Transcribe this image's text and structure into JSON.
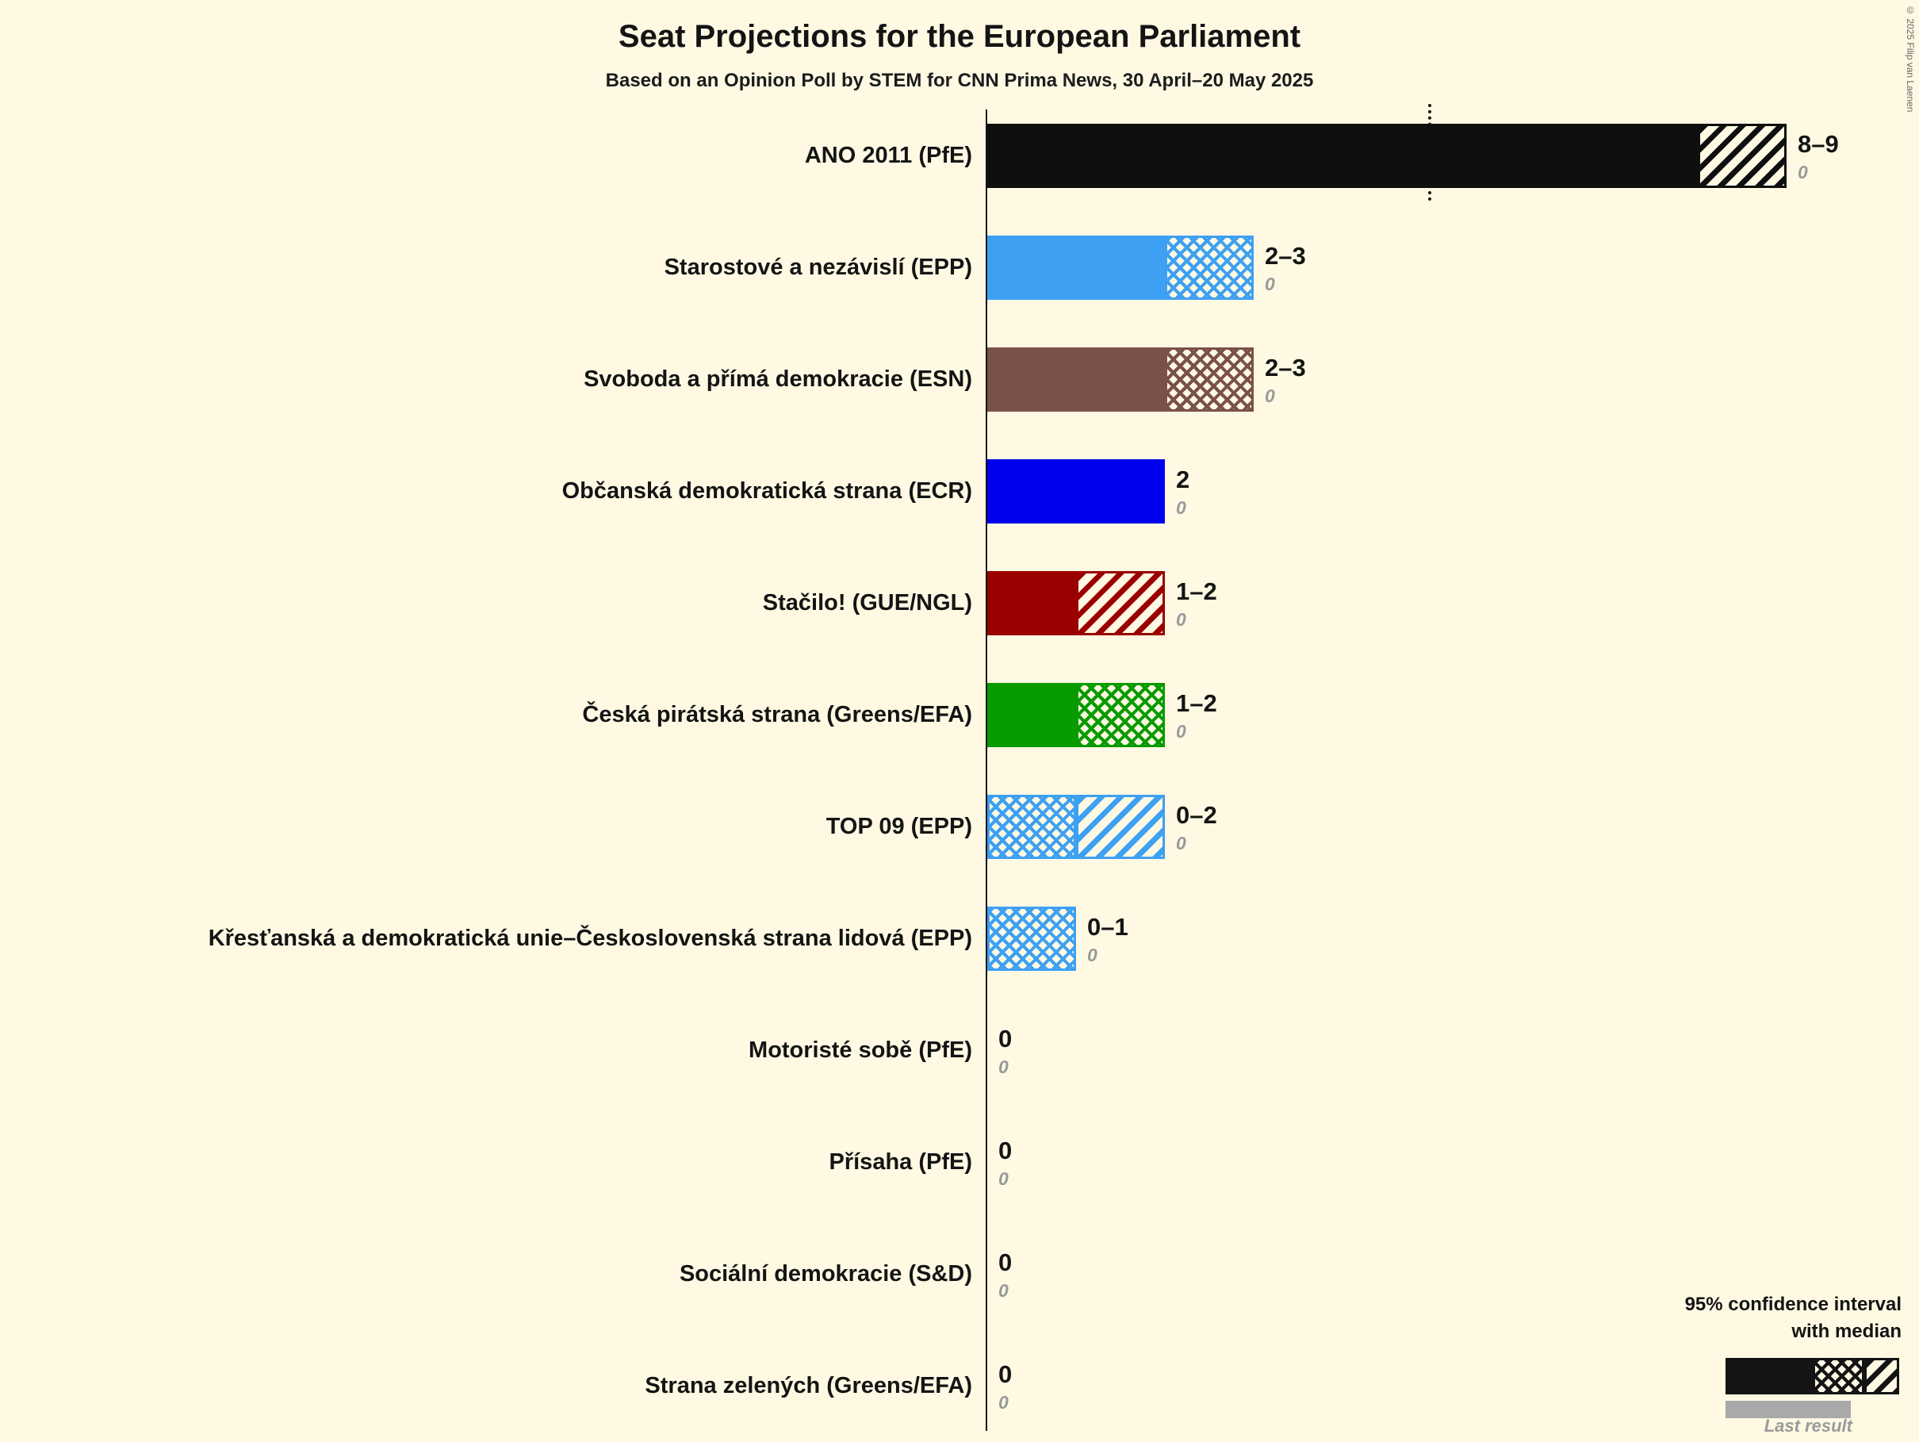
{
  "title": "Seat Projections for the European Parliament",
  "subtitle": "Based on an Opinion Poll by STEM for CNN Prima News, 30 April–20 May 2025",
  "copyright": "© 2025 Filip van Laenen",
  "legend": {
    "ci_line1": "95% confidence interval",
    "ci_line2": "with median",
    "last_result": "Last result"
  },
  "chart_data": {
    "type": "bar",
    "orientation": "horizontal",
    "unit": "seats",
    "x_min": 0,
    "x_max": 9,
    "dotted_marker_at": 5,
    "background_color": "#FFF9E3",
    "parties": [
      {
        "label": "ANO 2011 (PfE)",
        "value_label": "8–9",
        "last_result": "0",
        "color": "#0f0f0f",
        "segments": [
          {
            "style": "solid",
            "from": 0,
            "to": 8
          },
          {
            "style": "diagonal",
            "from": 8,
            "to": 9
          }
        ]
      },
      {
        "label": "Starostové a nezávislí (EPP)",
        "value_label": "2–3",
        "last_result": "0",
        "color": "#3ea0f2",
        "segments": [
          {
            "style": "solid",
            "from": 0,
            "to": 2
          },
          {
            "style": "cross",
            "from": 2,
            "to": 3
          }
        ]
      },
      {
        "label": "Svoboda a přímá demokracie (ESN)",
        "value_label": "2–3",
        "last_result": "0",
        "color": "#7a5148",
        "segments": [
          {
            "style": "solid",
            "from": 0,
            "to": 2
          },
          {
            "style": "cross",
            "from": 2,
            "to": 3
          }
        ]
      },
      {
        "label": "Občanská demokratická strana (ECR)",
        "value_label": "2",
        "last_result": "0",
        "color": "#0000ee",
        "segments": [
          {
            "style": "solid",
            "from": 0,
            "to": 2
          }
        ]
      },
      {
        "label": "Stačilo! (GUE/NGL)",
        "value_label": "1–2",
        "last_result": "0",
        "color": "#9a0000",
        "segments": [
          {
            "style": "solid",
            "from": 0,
            "to": 1
          },
          {
            "style": "diagonal",
            "from": 1,
            "to": 2
          }
        ]
      },
      {
        "label": "Česká pirátská strana (Greens/EFA)",
        "value_label": "1–2",
        "last_result": "0",
        "color": "#089b00",
        "segments": [
          {
            "style": "solid",
            "from": 0,
            "to": 1
          },
          {
            "style": "cross",
            "from": 1,
            "to": 2
          }
        ]
      },
      {
        "label": "TOP 09 (EPP)",
        "value_label": "0–2",
        "last_result": "0",
        "color": "#3ea0f2",
        "segments": [
          {
            "style": "cross",
            "from": 0,
            "to": 1
          },
          {
            "style": "diagonal",
            "from": 1,
            "to": 2
          }
        ]
      },
      {
        "label": "Křesťanská a demokratická unie–Československá strana lidová (EPP)",
        "value_label": "0–1",
        "last_result": "0",
        "color": "#3ea0f2",
        "segments": [
          {
            "style": "cross",
            "from": 0,
            "to": 1
          }
        ]
      },
      {
        "label": "Motoristé sobě (PfE)",
        "value_label": "0",
        "last_result": "0",
        "color": "#0f0f0f",
        "segments": []
      },
      {
        "label": "Přísaha (PfE)",
        "value_label": "0",
        "last_result": "0",
        "color": "#0f0f0f",
        "segments": []
      },
      {
        "label": "Sociální demokracie (S&D)",
        "value_label": "0",
        "last_result": "0",
        "color": "#0f0f0f",
        "segments": []
      },
      {
        "label": "Strana zelených (Greens/EFA)",
        "value_label": "0",
        "last_result": "0",
        "color": "#0f0f0f",
        "segments": []
      }
    ]
  }
}
